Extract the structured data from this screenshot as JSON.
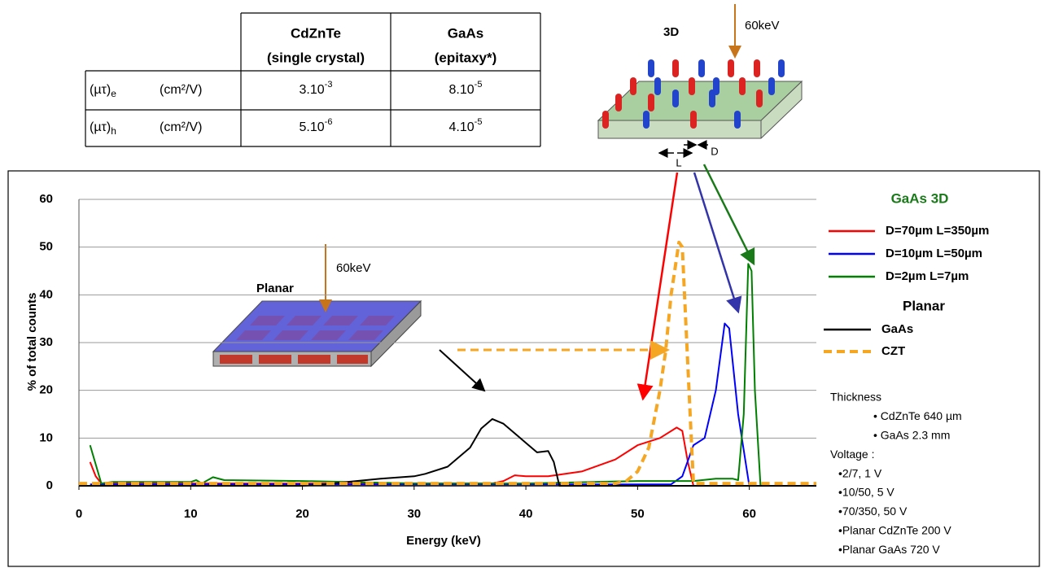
{
  "table": {
    "columns": [
      {
        "name": "CdZnTe",
        "sub": "(single crystal)"
      },
      {
        "name": "GaAs",
        "sub": "(epitaxy*)"
      }
    ],
    "rows": [
      {
        "label": "(µτ)",
        "index": "e",
        "unit": "(cm²/V)",
        "cells": [
          {
            "base": "3.10",
            "exp": "-3"
          },
          {
            "base": "8.10",
            "exp": "-5"
          }
        ]
      },
      {
        "label": "(µτ)",
        "index": "h",
        "unit": "(cm²/V)",
        "cells": [
          {
            "base": "5.10",
            "exp": "-6"
          },
          {
            "base": "4.10",
            "exp": "-5"
          }
        ]
      }
    ]
  },
  "diagram_3d": {
    "title": "3D",
    "beam": "60keV",
    "pitch": "L",
    "diameter": "D"
  },
  "diagram_planar": {
    "title": "Planar",
    "beam": "60keV"
  },
  "chart_data": {
    "type": "line",
    "x_label": "Energy (keV)",
    "y_label": "% of total counts",
    "xlim": [
      0,
      66
    ],
    "ylim": [
      0,
      60
    ],
    "xticks": [
      0,
      10,
      20,
      30,
      40,
      50,
      60
    ],
    "yticks": [
      0,
      10,
      20,
      30,
      40,
      50,
      60
    ],
    "grid": true,
    "legend_titles": [
      "GaAs 3D",
      "Planar"
    ],
    "series": [
      {
        "name": "D=70µm L=350µm",
        "color": "#ff0000",
        "x": [
          1,
          1.5,
          2,
          10,
          37,
          38,
          39,
          40,
          42,
          45,
          48,
          50,
          52,
          53.5,
          54,
          54.5,
          55,
          66
        ],
        "values": [
          5,
          2,
          0.5,
          0.5,
          0.5,
          1,
          2.2,
          2,
          2,
          3,
          5.5,
          8.5,
          10,
          12.2,
          11.5,
          5,
          0,
          0
        ]
      },
      {
        "name": "D=10µm L=50µm",
        "color": "#0000ff",
        "x": [
          1,
          53,
          54,
          55,
          56,
          57,
          57.8,
          58.2,
          59,
          60,
          66
        ],
        "values": [
          0.3,
          0.3,
          2,
          8.5,
          10,
          20,
          34,
          33,
          15,
          0,
          0
        ]
      },
      {
        "name": "D=2µm L=7µm",
        "color": "#008000",
        "x": [
          1,
          2,
          3,
          10,
          10.5,
          11,
          12,
          13,
          20,
          30,
          40,
          50,
          55,
          57,
          58.5,
          59,
          59.5,
          59.9,
          60.2,
          60.5,
          61,
          66
        ],
        "values": [
          8.5,
          0.5,
          0.8,
          0.8,
          1.2,
          0.5,
          1.8,
          1.2,
          1,
          0.5,
          0.5,
          1,
          1,
          1.5,
          1.5,
          1.2,
          15,
          46.5,
          45,
          20,
          0,
          0
        ]
      },
      {
        "name": "GaAs",
        "color": "#000000",
        "x": [
          0,
          20,
          22,
          24,
          27,
          30,
          31,
          33,
          35,
          36,
          37,
          38,
          39,
          40,
          41,
          42,
          42.5,
          43,
          66
        ],
        "values": [
          0,
          0,
          0.3,
          0.8,
          1.5,
          2,
          2.5,
          4,
          8,
          12,
          14,
          13,
          11,
          9,
          7,
          7.3,
          5,
          0,
          0
        ]
      },
      {
        "name": "CZT",
        "color": "#f5a623",
        "dashed": true,
        "x": [
          0,
          48,
          49,
          50,
          51,
          52,
          52.5,
          53,
          53.7,
          54,
          54.3,
          54.8,
          55,
          66
        ],
        "values": [
          0.5,
          0.5,
          1,
          3,
          8,
          20,
          28,
          40,
          51,
          50,
          35,
          10,
          0.5,
          0.5
        ]
      }
    ],
    "notes": [
      "Thickness",
      "• CdZnTe 640 µm",
      "• GaAs 2.3 mm",
      "Voltage  :",
      "•2/7, 1 V",
      "•10/50, 5 V",
      "•70/350, 50 V",
      "•Planar CdZnTe 200 V",
      "•Planar GaAs 720 V"
    ]
  }
}
